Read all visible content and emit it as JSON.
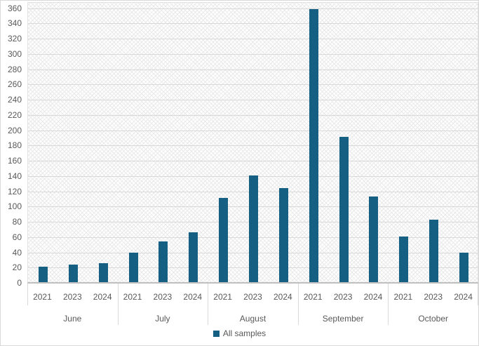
{
  "chart_data": {
    "type": "bar",
    "title": "",
    "xlabel": "",
    "ylabel": "",
    "ylim": [
      0,
      368
    ],
    "ytick_step": 20,
    "ytick_max": 360,
    "grid": true,
    "legend": {
      "label": "All samples",
      "position": "bottom"
    },
    "groups": [
      {
        "label": "June",
        "categories": [
          "2021",
          "2023",
          "2024"
        ],
        "values": [
          20,
          23,
          25
        ]
      },
      {
        "label": "July",
        "categories": [
          "2021",
          "2023",
          "2024"
        ],
        "values": [
          39,
          53,
          65
        ]
      },
      {
        "label": "August",
        "categories": [
          "2021",
          "2023",
          "2024"
        ],
        "values": [
          110,
          140,
          123
        ]
      },
      {
        "label": "September",
        "categories": [
          "2021",
          "2023",
          "2024"
        ],
        "values": [
          358,
          190,
          112
        ]
      },
      {
        "label": "October",
        "categories": [
          "2021",
          "2023",
          "2024"
        ],
        "values": [
          60,
          82,
          39
        ]
      }
    ],
    "series": [
      {
        "name": "All samples",
        "color": "#156082"
      }
    ],
    "colors": {
      "bar": "#156082",
      "gridline": "#d9d9d9",
      "axis_text": "#595959",
      "separator": "#d9d9d9",
      "axis_line": "#bfbfbf",
      "pattern_line": "#e9e9e9",
      "background": "#ffffff"
    }
  }
}
